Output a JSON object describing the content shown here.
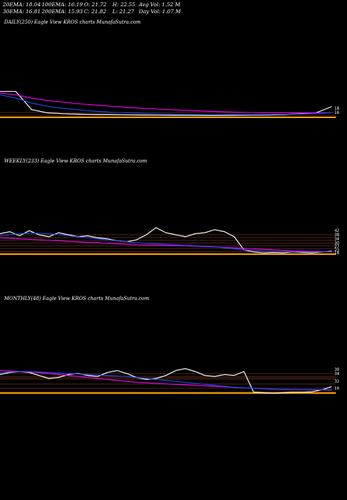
{
  "header": {
    "row1": [
      {
        "label": "20EMA:",
        "value": "18.04"
      },
      {
        "label": "100EMA:",
        "value": "16.19"
      },
      {
        "label": "O:",
        "value": "21.72"
      },
      {
        "label": "H:",
        "value": "22.55"
      },
      {
        "label": "Avg Vol:",
        "value": "1.52  M"
      }
    ],
    "row2": [
      {
        "label": "30EMA:",
        "value": "16.81"
      },
      {
        "label": "200EMA:",
        "value": "15.93"
      },
      {
        "label": "C:",
        "value": "21.82"
      },
      {
        "label": "L:",
        "value": "21.27"
      },
      {
        "label": "Day Vol:",
        "value": "1.07  M"
      }
    ]
  },
  "chart_data": [
    {
      "type": "line",
      "title": "DAILY(250) Eagle   View  KROS charts MunafaSutra.com",
      "y_tick_labels": [
        "18",
        "16"
      ],
      "colors": {
        "price": "#ffffff",
        "ema_fast": "#ff00ff",
        "ema_slow": "#1e4cff",
        "ma": "#ffa500"
      },
      "series": [
        {
          "values": [
            31,
            31,
            20,
            18,
            17.5,
            17.2,
            17,
            17,
            16.8,
            16.7,
            16.6,
            16.5,
            16.5,
            16.4,
            16.4,
            16.5,
            16.6,
            16.7,
            17,
            17.5,
            18,
            21.8
          ]
        },
        {
          "values": [
            30,
            29,
            27,
            25.5,
            24.5,
            23.5,
            22.8,
            22,
            21.4,
            20.8,
            20.3,
            19.8,
            19.4,
            19,
            18.7,
            18.4,
            18.2,
            18,
            18,
            18,
            18,
            18
          ]
        },
        {
          "values": [
            29,
            27,
            24,
            22,
            20.8,
            19.8,
            19,
            18.4,
            18,
            17.6,
            17.3,
            17.1,
            17,
            16.9,
            16.9,
            16.9,
            16.9,
            17,
            17.1,
            17.3,
            17.6,
            18
          ]
        }
      ]
    },
    {
      "type": "line",
      "title": "WEEKLY(233) Eagle   View  KROS charts MunafaSutra.com",
      "y_tick_labels": [
        "42",
        "38",
        "34",
        "30",
        "27",
        "23",
        "18"
      ],
      "colors": {
        "price": "#ffffff",
        "ema_fast": "#ff00ff",
        "ema_slow": "#1e4cff",
        "ma": "#ffa500"
      },
      "series": [
        {
          "values": [
            38,
            40,
            36,
            41,
            37,
            35,
            39,
            37,
            35,
            36,
            34,
            33,
            31,
            30,
            32,
            37,
            44,
            39,
            37,
            35,
            38,
            39,
            42,
            40,
            35,
            22,
            20,
            19,
            19.5,
            19,
            20,
            19.5,
            19,
            20,
            21
          ]
        },
        {
          "values": [
            34,
            33.5,
            33,
            32.5,
            32,
            31.5,
            31,
            30.5,
            30,
            29.5,
            29,
            28.5,
            28,
            27.5,
            27,
            26.8,
            26.6,
            26.4,
            26.2,
            26,
            25.6,
            25.2,
            24.8,
            24.4,
            24,
            23.5,
            23,
            22.5,
            22,
            21.5,
            21,
            20.8,
            20.6,
            20.4,
            20.2
          ]
        },
        {
          "values": [
            36,
            37,
            38,
            38.5,
            38.5,
            38,
            37,
            36,
            35,
            34,
            33,
            32,
            31,
            30,
            29,
            28.5,
            28,
            27.5,
            27,
            26.5,
            26,
            25.5,
            25,
            24,
            23,
            22,
            21.5,
            21,
            20.5,
            20,
            20,
            20,
            20,
            20,
            20.5
          ]
        }
      ]
    },
    {
      "type": "line",
      "title": "MONTHLY(48) Eagle   View  KROS charts MunafaSutra.com",
      "y_tick_labels": [
        "39",
        "34",
        "32",
        "16"
      ],
      "colors": {
        "price": "#ffffff",
        "ema_fast": "#ff00ff",
        "ema_slow": "#1e4cff",
        "ma": "#ffa500"
      },
      "series": [
        {
          "values": [
            34,
            36,
            37,
            36,
            33,
            30,
            31,
            34,
            35,
            33,
            32,
            36,
            38,
            35,
            31,
            29,
            30,
            33,
            38,
            40,
            37,
            33,
            32,
            34,
            33,
            37,
            16,
            15.5,
            15,
            15.5,
            16,
            16,
            16.5,
            18.5,
            21.8
          ]
        },
        {
          "values": [
            38,
            37.5,
            37,
            36.5,
            36,
            35,
            34,
            33,
            32,
            31,
            30,
            29,
            28,
            27,
            26,
            25.5,
            25,
            24.5,
            24,
            23.5,
            23,
            22.5,
            22,
            21.5,
            21,
            20.5,
            20,
            19.5,
            19,
            18.8,
            18.6,
            18.5,
            18.4,
            18.3,
            18.2
          ]
        },
        {
          "values": [
            36,
            36.5,
            37,
            37,
            36.5,
            36,
            35.5,
            35,
            34.5,
            34,
            33.5,
            33,
            32.5,
            32,
            31,
            30,
            29,
            28,
            27,
            26,
            25,
            24,
            23,
            22,
            21,
            20.5,
            20,
            19.5,
            19.2,
            19,
            18.8,
            18.7,
            18.6,
            18.6,
            18.6
          ]
        }
      ]
    }
  ]
}
